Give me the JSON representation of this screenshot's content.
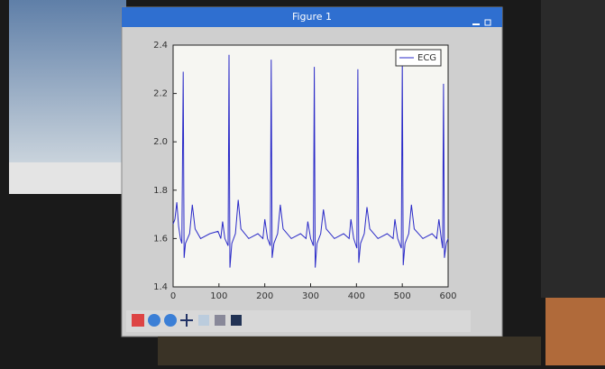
{
  "chart_data": {
    "type": "line",
    "window_title": "Figure 1",
    "xlim": [
      0,
      600
    ],
    "xticks": [
      0,
      100,
      200,
      300,
      400,
      500,
      600
    ],
    "ylim": [
      1.4,
      2.4
    ],
    "yticks": [
      1.4,
      1.6,
      1.8,
      {
        "value": 2,
        "label": "2.0"
      },
      2.2,
      2.4
    ],
    "legend": "upper right",
    "x": [
      0,
      4,
      8,
      12,
      16,
      19,
      22,
      24,
      27,
      36,
      42,
      48,
      60,
      80,
      98,
      104,
      108,
      113,
      120,
      122,
      124,
      128,
      136,
      142,
      148,
      165,
      185,
      196,
      200,
      206,
      212,
      214,
      216,
      220,
      228,
      234,
      240,
      258,
      278,
      290,
      294,
      300,
      306,
      308,
      310,
      314,
      322,
      328,
      334,
      352,
      372,
      384,
      388,
      394,
      401,
      403,
      405,
      409,
      417,
      423,
      429,
      447,
      467,
      480,
      484,
      490,
      498,
      500,
      502,
      506,
      514,
      520,
      526,
      545,
      565,
      575,
      580,
      585,
      588,
      590,
      592,
      596,
      600
    ],
    "series": [
      {
        "name": "ECG",
        "color": "#2a2ac8",
        "values": [
          1.66,
          1.68,
          1.75,
          1.65,
          1.6,
          1.58,
          2.29,
          1.52,
          1.58,
          1.62,
          1.74,
          1.64,
          1.6,
          1.62,
          1.63,
          1.6,
          1.67,
          1.6,
          1.57,
          2.36,
          1.48,
          1.58,
          1.62,
          1.76,
          1.64,
          1.6,
          1.62,
          1.6,
          1.68,
          1.6,
          1.57,
          2.34,
          1.52,
          1.58,
          1.62,
          1.74,
          1.64,
          1.6,
          1.62,
          1.6,
          1.67,
          1.6,
          1.57,
          2.31,
          1.48,
          1.58,
          1.62,
          1.72,
          1.64,
          1.6,
          1.62,
          1.6,
          1.68,
          1.6,
          1.56,
          2.3,
          1.5,
          1.58,
          1.62,
          1.73,
          1.64,
          1.6,
          1.62,
          1.6,
          1.68,
          1.6,
          1.56,
          2.33,
          1.49,
          1.58,
          1.62,
          1.74,
          1.64,
          1.6,
          1.62,
          1.6,
          1.68,
          1.6,
          1.56,
          2.24,
          1.52,
          1.58,
          1.6
        ]
      }
    ]
  }
}
